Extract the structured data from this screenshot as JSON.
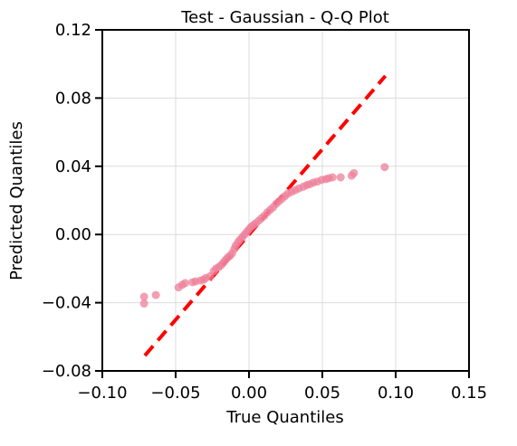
{
  "chart_data": {
    "type": "scatter",
    "title": "Test - Gaussian - Q-Q Plot",
    "xlabel": "True Quantiles",
    "ylabel": "Predicted Quantiles",
    "xlim": [
      -0.1,
      0.15
    ],
    "ylim": [
      -0.08,
      0.12
    ],
    "x_ticks": [
      -0.1,
      -0.05,
      0.0,
      0.05,
      0.1,
      0.15
    ],
    "x_tick_labels": [
      "−0.10",
      "−0.05",
      "0.00",
      "0.05",
      "0.10",
      "0.15"
    ],
    "y_ticks": [
      -0.08,
      -0.04,
      0.0,
      0.04,
      0.08,
      0.12
    ],
    "y_tick_labels": [
      "−0.08",
      "−0.04",
      "0.00",
      "0.04",
      "0.08",
      "0.12"
    ],
    "grid": true,
    "point_color": "#ee7f9a",
    "line_color": "#ff0000",
    "reference_line": {
      "x": [
        -0.071,
        0.093
      ],
      "y": [
        -0.071,
        0.093
      ]
    },
    "points": [
      {
        "x": -0.0715,
        "y": -0.0405
      },
      {
        "x": -0.0715,
        "y": -0.0365
      },
      {
        "x": -0.0635,
        "y": -0.0355
      },
      {
        "x": -0.048,
        "y": -0.031
      },
      {
        "x": -0.0455,
        "y": -0.0295
      },
      {
        "x": -0.0435,
        "y": -0.0285
      },
      {
        "x": -0.0385,
        "y": -0.028
      },
      {
        "x": -0.0365,
        "y": -0.0275
      },
      {
        "x": -0.033,
        "y": -0.027
      },
      {
        "x": -0.031,
        "y": -0.0265
      },
      {
        "x": -0.0295,
        "y": -0.0255
      },
      {
        "x": -0.0265,
        "y": -0.0245
      },
      {
        "x": -0.024,
        "y": -0.0215
      },
      {
        "x": -0.0225,
        "y": -0.02
      },
      {
        "x": -0.0205,
        "y": -0.019
      },
      {
        "x": -0.019,
        "y": -0.018
      },
      {
        "x": -0.0175,
        "y": -0.0165
      },
      {
        "x": -0.016,
        "y": -0.015
      },
      {
        "x": -0.0145,
        "y": -0.0135
      },
      {
        "x": -0.013,
        "y": -0.0125
      },
      {
        "x": -0.0115,
        "y": -0.011
      },
      {
        "x": -0.01,
        "y": -0.0085
      },
      {
        "x": -0.009,
        "y": -0.0065
      },
      {
        "x": -0.0075,
        "y": -0.0045
      },
      {
        "x": -0.006,
        "y": -0.003
      },
      {
        "x": -0.0045,
        "y": -0.0015
      },
      {
        "x": -0.003,
        "y": 0.0
      },
      {
        "x": -0.0015,
        "y": 0.0015
      },
      {
        "x": 0.0,
        "y": 0.003
      },
      {
        "x": 0.0015,
        "y": 0.0045
      },
      {
        "x": 0.003,
        "y": 0.0055
      },
      {
        "x": 0.0045,
        "y": 0.0065
      },
      {
        "x": 0.0065,
        "y": 0.008
      },
      {
        "x": 0.0085,
        "y": 0.0095
      },
      {
        "x": 0.0105,
        "y": 0.011
      },
      {
        "x": 0.0125,
        "y": 0.013
      },
      {
        "x": 0.0145,
        "y": 0.0145
      },
      {
        "x": 0.0165,
        "y": 0.016
      },
      {
        "x": 0.0185,
        "y": 0.018
      },
      {
        "x": 0.0205,
        "y": 0.0195
      },
      {
        "x": 0.0225,
        "y": 0.021
      },
      {
        "x": 0.0245,
        "y": 0.0225
      },
      {
        "x": 0.0265,
        "y": 0.024
      },
      {
        "x": 0.029,
        "y": 0.025
      },
      {
        "x": 0.0315,
        "y": 0.026
      },
      {
        "x": 0.034,
        "y": 0.027
      },
      {
        "x": 0.037,
        "y": 0.028
      },
      {
        "x": 0.0395,
        "y": 0.029
      },
      {
        "x": 0.0415,
        "y": 0.0295
      },
      {
        "x": 0.044,
        "y": 0.0305
      },
      {
        "x": 0.0465,
        "y": 0.031
      },
      {
        "x": 0.0495,
        "y": 0.032
      },
      {
        "x": 0.0525,
        "y": 0.0325
      },
      {
        "x": 0.0545,
        "y": 0.033
      },
      {
        "x": 0.057,
        "y": 0.0335
      },
      {
        "x": 0.0625,
        "y": 0.0335
      },
      {
        "x": 0.07,
        "y": 0.0345
      },
      {
        "x": 0.0715,
        "y": 0.036
      },
      {
        "x": 0.0925,
        "y": 0.0395
      }
    ]
  }
}
